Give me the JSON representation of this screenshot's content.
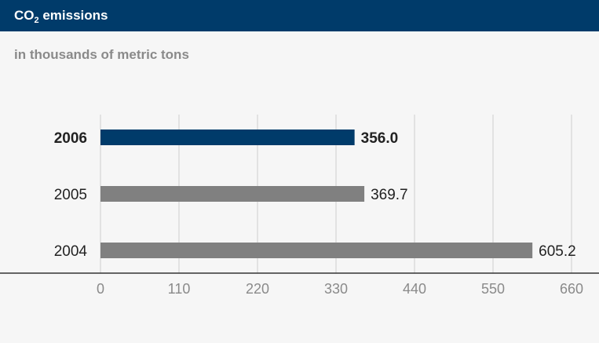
{
  "header": {
    "title_prefix": "CO",
    "title_sub": "2",
    "title_suffix": " emissions"
  },
  "subtitle": "in thousands of metric tons",
  "colors": {
    "highlight": "#003b6a",
    "bar": "#808080",
    "grid": "#cfcfcf",
    "axis": "#333333",
    "tick_text": "#8a8a8a",
    "label_text": "#222222"
  },
  "chart_data": {
    "type": "bar",
    "orientation": "horizontal",
    "title": "CO2 emissions",
    "subtitle": "in thousands of metric tons",
    "categories": [
      "2006",
      "2005",
      "2004"
    ],
    "values": [
      356.0,
      369.7,
      605.2
    ],
    "value_labels": [
      "356.0",
      "369.7",
      "605.2"
    ],
    "highlight": [
      true,
      false,
      false
    ],
    "xlim": [
      0,
      660
    ],
    "xticks": [
      0,
      110,
      220,
      330,
      440,
      550,
      660
    ],
    "grid": true
  }
}
